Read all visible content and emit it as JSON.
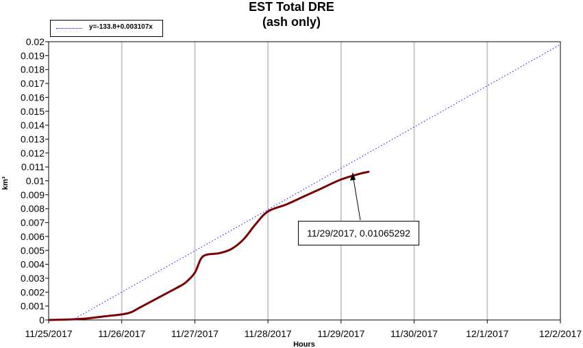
{
  "chart_data": {
    "type": "line",
    "title": "EST Total DRE",
    "subtitle": "(ash only)",
    "xlabel": "Hours",
    "ylabel": "km³",
    "x_tick_labels": [
      "11/25/2017",
      "11/26/2017",
      "11/27/2017",
      "11/28/2017",
      "11/29/2017",
      "11/30/2017",
      "12/1/2017",
      "12/2/2017"
    ],
    "y_tick_labels": [
      "0",
      "0.001",
      "0.002",
      "0.003",
      "0.004",
      "0.005",
      "0.006",
      "0.007",
      "0.008",
      "0.009",
      "0.01",
      "0.011",
      "0.012",
      "0.013",
      "0.014",
      "0.015",
      "0.016",
      "0.017",
      "0.018",
      "0.019",
      "0.02"
    ],
    "xlim": [
      "2017-11-25",
      "2017-12-02"
    ],
    "ylim": [
      0,
      0.02
    ],
    "grid": true,
    "legend_position": "top-left",
    "series": [
      {
        "color": "#7a0000",
        "style": "solid",
        "points": [
          [
            "2017-11-25 00:00",
            0.0
          ],
          [
            "2017-11-25 06:00",
            3e-05
          ],
          [
            "2017-11-25 12:00",
            0.0001
          ],
          [
            "2017-11-25 18:00",
            0.00025
          ],
          [
            "2017-11-26 00:00",
            0.0004
          ],
          [
            "2017-11-26 03:00",
            0.00055
          ],
          [
            "2017-11-26 06:00",
            0.0009
          ],
          [
            "2017-11-26 12:00",
            0.0016
          ],
          [
            "2017-11-26 18:00",
            0.0023
          ],
          [
            "2017-11-26 21:00",
            0.0027
          ],
          [
            "2017-11-27 00:00",
            0.0034
          ],
          [
            "2017-11-27 02:00",
            0.0044
          ],
          [
            "2017-11-27 04:00",
            0.0047
          ],
          [
            "2017-11-27 08:00",
            0.0048
          ],
          [
            "2017-11-27 12:00",
            0.0051
          ],
          [
            "2017-11-27 16:00",
            0.0058
          ],
          [
            "2017-11-27 20:00",
            0.0069
          ],
          [
            "2017-11-28 00:00",
            0.0078
          ],
          [
            "2017-11-28 06:00",
            0.0083
          ],
          [
            "2017-11-28 12:00",
            0.0089
          ],
          [
            "2017-11-28 18:00",
            0.0095
          ],
          [
            "2017-11-29 00:00",
            0.0101
          ],
          [
            "2017-11-29 06:00",
            0.0105
          ],
          [
            "2017-11-29 09:00",
            0.01065
          ]
        ]
      },
      {
        "name": "y=-133.8+0.003107x",
        "color": "#0000ff",
        "style": "dotted",
        "points": [
          [
            "2017-11-25 07:48",
            0.0
          ],
          [
            "2017-12-02 00:00",
            0.0198
          ]
        ]
      }
    ],
    "annotation": {
      "text": "11/29/2017, 0.01065292",
      "x": "2017-11-29 09:00",
      "y": 0.01065292
    }
  }
}
